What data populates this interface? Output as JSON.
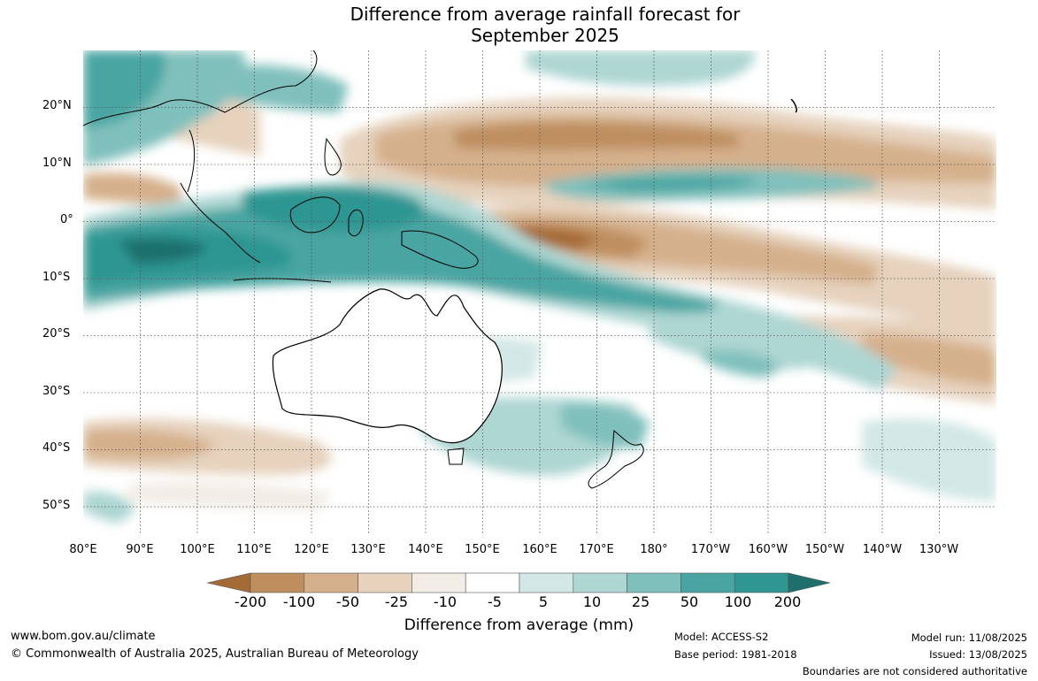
{
  "title": {
    "line1": "Difference from average rainfall forecast for",
    "line2": "September 2025"
  },
  "map": {
    "lat_labels": [
      "20°N",
      "10°N",
      "0°",
      "10°S",
      "20°S",
      "30°S",
      "40°S",
      "50°S"
    ],
    "lon_labels": [
      "80°E",
      "90°E",
      "100°E",
      "110°E",
      "120°E",
      "130°E",
      "140°E",
      "150°E",
      "160°E",
      "170°E",
      "180°",
      "170°W",
      "160°W",
      "150°W",
      "140°W",
      "130°W"
    ]
  },
  "legend": {
    "labels": [
      "-200",
      "-100",
      "-50",
      "-25",
      "-10",
      "-5",
      "5",
      "10",
      "25",
      "50",
      "100",
      "200"
    ],
    "colors": [
      "#a56b36",
      "#be8e5e",
      "#d5b08c",
      "#e6d2bd",
      "#f2ede6",
      "#ffffff",
      "#d3e8e6",
      "#aed6d3",
      "#80c0bc",
      "#4aa5a2",
      "#2f9692",
      "#1f6f6c"
    ],
    "title": "Difference from average (mm)"
  },
  "footer": {
    "website": "www.bom.gov.au/climate",
    "copyright": "© Commonwealth of Australia 2025, Australian Bureau of Meteorology",
    "model": "Model: ACCESS-S2",
    "base_period": "Base period: 1981-2018",
    "model_run": "Model run: 11/08/2025",
    "issued": "Issued: 13/08/2025",
    "disclaimer": "Boundaries are not considered authoritative"
  }
}
